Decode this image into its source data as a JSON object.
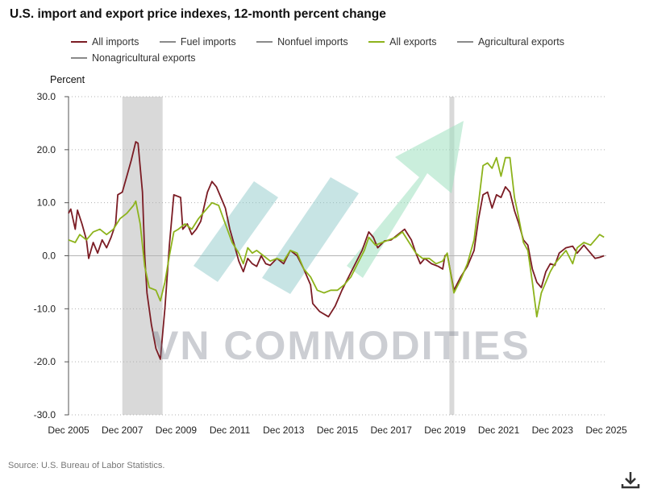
{
  "title": "U.S. import and export price indexes, 12-month percent change",
  "legend": [
    {
      "label": "All imports",
      "color": "#7b1c24"
    },
    {
      "label": "Fuel imports",
      "color": "#8a8a8a"
    },
    {
      "label": "Nonfuel imports",
      "color": "#8a8a8a"
    },
    {
      "label": "All exports",
      "color": "#8db31c"
    },
    {
      "label": "Agricultural exports",
      "color": "#8a8a8a"
    },
    {
      "label": "Nonagricultural exports",
      "color": "#8a8a8a"
    }
  ],
  "source": "Source: U.S. Bureau of Labor Statistics.",
  "watermark": "VN COMMODITIES",
  "chart_data": {
    "type": "line",
    "ylabel": "Percent",
    "xlabel": "",
    "ylim": [
      -30,
      30
    ],
    "yticks": [
      "30.0",
      "20.0",
      "10.0",
      "0.0",
      "-10.0",
      "-20.0",
      "-30.0"
    ],
    "xlim": [
      "2005-12",
      "2025-12"
    ],
    "xticks": [
      "Dec 2005",
      "Dec 2007",
      "Dec 2009",
      "Dec 2011",
      "Dec 2013",
      "Dec 2015",
      "Dec 2017",
      "Dec 2019",
      "Dec 2021",
      "Dec 2023",
      "Dec 2025"
    ],
    "grid": "horizontal dotted",
    "recessions": [
      [
        "2007-12",
        "2009-06"
      ],
      [
        "2020-02",
        "2020-04"
      ]
    ],
    "series": [
      {
        "name": "All imports",
        "color": "#7b1c24",
        "points": [
          [
            "2005-12",
            8.0
          ],
          [
            "2006-01",
            8.8
          ],
          [
            "2006-03",
            5.0
          ],
          [
            "2006-04",
            8.6
          ],
          [
            "2006-06",
            6.0
          ],
          [
            "2006-08",
            3.0
          ],
          [
            "2006-09",
            -0.5
          ],
          [
            "2006-11",
            2.5
          ],
          [
            "2007-01",
            0.5
          ],
          [
            "2007-03",
            3.0
          ],
          [
            "2007-05",
            1.5
          ],
          [
            "2007-07",
            3.5
          ],
          [
            "2007-09",
            6.0
          ],
          [
            "2007-10",
            11.5
          ],
          [
            "2007-12",
            12.0
          ],
          [
            "2008-02",
            15.0
          ],
          [
            "2008-04",
            18.0
          ],
          [
            "2008-06",
            21.5
          ],
          [
            "2008-07",
            21.2
          ],
          [
            "2008-09",
            12.0
          ],
          [
            "2008-10",
            0.0
          ],
          [
            "2008-11",
            -7.0
          ],
          [
            "2009-01",
            -13.0
          ],
          [
            "2009-03",
            -17.5
          ],
          [
            "2009-05",
            -19.5
          ],
          [
            "2009-07",
            -10.0
          ],
          [
            "2009-09",
            2.0
          ],
          [
            "2009-11",
            11.5
          ],
          [
            "2010-02",
            11.0
          ],
          [
            "2010-03",
            5.0
          ],
          [
            "2010-05",
            6.0
          ],
          [
            "2010-07",
            4.0
          ],
          [
            "2010-09",
            5.0
          ],
          [
            "2010-11",
            6.5
          ],
          [
            "2011-02",
            12.0
          ],
          [
            "2011-04",
            14.0
          ],
          [
            "2011-06",
            13.0
          ],
          [
            "2011-08",
            11.0
          ],
          [
            "2011-10",
            9.0
          ],
          [
            "2011-12",
            5.0
          ],
          [
            "2012-02",
            2.0
          ],
          [
            "2012-04",
            -1.0
          ],
          [
            "2012-06",
            -3.0
          ],
          [
            "2012-08",
            -0.5
          ],
          [
            "2012-10",
            -1.5
          ],
          [
            "2012-12",
            -2.0
          ],
          [
            "2013-02",
            0.0
          ],
          [
            "2013-04",
            -1.5
          ],
          [
            "2013-06",
            -1.8
          ],
          [
            "2013-09",
            -0.5
          ],
          [
            "2013-12",
            -1.5
          ],
          [
            "2014-03",
            1.0
          ],
          [
            "2014-06",
            0.0
          ],
          [
            "2014-09",
            -2.5
          ],
          [
            "2014-12",
            -5.5
          ],
          [
            "2015-01",
            -9.0
          ],
          [
            "2015-04",
            -10.5
          ],
          [
            "2015-08",
            -11.5
          ],
          [
            "2015-11",
            -9.5
          ],
          [
            "2016-02",
            -6.5
          ],
          [
            "2016-05",
            -4.0
          ],
          [
            "2016-08",
            -1.5
          ],
          [
            "2016-11",
            1.0
          ],
          [
            "2017-02",
            4.5
          ],
          [
            "2017-04",
            3.5
          ],
          [
            "2017-06",
            1.5
          ],
          [
            "2017-09",
            2.8
          ],
          [
            "2017-12",
            3.0
          ],
          [
            "2018-03",
            4.0
          ],
          [
            "2018-06",
            5.0
          ],
          [
            "2018-09",
            3.0
          ],
          [
            "2018-11",
            0.5
          ],
          [
            "2019-01",
            -1.5
          ],
          [
            "2019-03",
            -0.5
          ],
          [
            "2019-06",
            -1.5
          ],
          [
            "2019-09",
            -2.0
          ],
          [
            "2019-11",
            -2.5
          ],
          [
            "2019-12",
            0.0
          ],
          [
            "2020-01",
            0.3
          ],
          [
            "2020-04",
            -6.5
          ],
          [
            "2020-07",
            -4.0
          ],
          [
            "2020-10",
            -2.0
          ],
          [
            "2021-01",
            1.0
          ],
          [
            "2021-03",
            7.0
          ],
          [
            "2021-05",
            11.5
          ],
          [
            "2021-07",
            12.0
          ],
          [
            "2021-09",
            9.0
          ],
          [
            "2021-11",
            11.5
          ],
          [
            "2022-01",
            11.0
          ],
          [
            "2022-03",
            13.0
          ],
          [
            "2022-05",
            12.0
          ],
          [
            "2022-07",
            8.5
          ],
          [
            "2022-09",
            6.0
          ],
          [
            "2022-11",
            3.0
          ],
          [
            "2023-01",
            2.0
          ],
          [
            "2023-03",
            -2.5
          ],
          [
            "2023-05",
            -5.0
          ],
          [
            "2023-07",
            -6.0
          ],
          [
            "2023-09",
            -3.0
          ],
          [
            "2023-11",
            -1.5
          ],
          [
            "2024-01",
            -1.8
          ],
          [
            "2024-03",
            0.5
          ],
          [
            "2024-06",
            1.5
          ],
          [
            "2024-09",
            1.8
          ],
          [
            "2024-11",
            0.5
          ],
          [
            "2025-02",
            2.0
          ],
          [
            "2025-05",
            0.5
          ],
          [
            "2025-07",
            -0.5
          ],
          [
            "2025-09",
            -0.3
          ],
          [
            "2025-11",
            0.0
          ]
        ]
      },
      {
        "name": "All exports",
        "color": "#8db31c",
        "points": [
          [
            "2005-12",
            3.0
          ],
          [
            "2006-03",
            2.5
          ],
          [
            "2006-05",
            4.0
          ],
          [
            "2006-08",
            3.0
          ],
          [
            "2006-11",
            4.5
          ],
          [
            "2007-02",
            5.0
          ],
          [
            "2007-05",
            4.0
          ],
          [
            "2007-08",
            5.0
          ],
          [
            "2007-11",
            7.0
          ],
          [
            "2008-02",
            8.0
          ],
          [
            "2008-05",
            9.5
          ],
          [
            "2008-06",
            10.3
          ],
          [
            "2008-08",
            6.0
          ],
          [
            "2008-10",
            -2.0
          ],
          [
            "2008-12",
            -6.0
          ],
          [
            "2009-03",
            -6.5
          ],
          [
            "2009-05",
            -8.5
          ],
          [
            "2009-07",
            -5.0
          ],
          [
            "2009-09",
            0.0
          ],
          [
            "2009-11",
            4.5
          ],
          [
            "2010-01",
            5.0
          ],
          [
            "2010-04",
            6.0
          ],
          [
            "2010-07",
            5.0
          ],
          [
            "2010-10",
            7.0
          ],
          [
            "2011-01",
            8.5
          ],
          [
            "2011-04",
            10.0
          ],
          [
            "2011-07",
            9.5
          ],
          [
            "2011-10",
            6.0
          ],
          [
            "2012-01",
            2.5
          ],
          [
            "2012-04",
            0.5
          ],
          [
            "2012-06",
            -1.5
          ],
          [
            "2012-08",
            1.5
          ],
          [
            "2012-10",
            0.5
          ],
          [
            "2012-12",
            1.0
          ],
          [
            "2013-03",
            0.0
          ],
          [
            "2013-06",
            -1.0
          ],
          [
            "2013-09",
            -0.5
          ],
          [
            "2013-12",
            -1.0
          ],
          [
            "2014-03",
            1.0
          ],
          [
            "2014-06",
            0.5
          ],
          [
            "2014-09",
            -2.5
          ],
          [
            "2014-12",
            -4.0
          ],
          [
            "2015-03",
            -6.5
          ],
          [
            "2015-06",
            -7.0
          ],
          [
            "2015-09",
            -6.5
          ],
          [
            "2015-12",
            -6.5
          ],
          [
            "2016-03",
            -5.5
          ],
          [
            "2016-06",
            -4.0
          ],
          [
            "2016-09",
            -1.5
          ],
          [
            "2016-12",
            1.0
          ],
          [
            "2017-02",
            3.5
          ],
          [
            "2017-05",
            2.0
          ],
          [
            "2017-08",
            2.5
          ],
          [
            "2017-11",
            3.0
          ],
          [
            "2018-02",
            3.5
          ],
          [
            "2018-05",
            4.5
          ],
          [
            "2018-08",
            2.5
          ],
          [
            "2018-11",
            0.5
          ],
          [
            "2019-02",
            -0.5
          ],
          [
            "2019-05",
            -0.5
          ],
          [
            "2019-08",
            -1.5
          ],
          [
            "2019-11",
            -1.0
          ],
          [
            "2020-01",
            0.5
          ],
          [
            "2020-04",
            -7.0
          ],
          [
            "2020-07",
            -4.5
          ],
          [
            "2020-10",
            -1.5
          ],
          [
            "2021-01",
            3.0
          ],
          [
            "2021-03",
            10.0
          ],
          [
            "2021-05",
            17.0
          ],
          [
            "2021-07",
            17.5
          ],
          [
            "2021-09",
            16.5
          ],
          [
            "2021-11",
            18.5
          ],
          [
            "2022-01",
            15.0
          ],
          [
            "2022-03",
            18.5
          ],
          [
            "2022-05",
            18.5
          ],
          [
            "2022-07",
            11.0
          ],
          [
            "2022-09",
            7.0
          ],
          [
            "2022-11",
            2.5
          ],
          [
            "2023-01",
            1.0
          ],
          [
            "2023-03",
            -5.0
          ],
          [
            "2023-05",
            -11.5
          ],
          [
            "2023-07",
            -7.0
          ],
          [
            "2023-09",
            -5.0
          ],
          [
            "2023-11",
            -3.0
          ],
          [
            "2024-01",
            -1.5
          ],
          [
            "2024-03",
            -0.5
          ],
          [
            "2024-06",
            1.0
          ],
          [
            "2024-09",
            -1.5
          ],
          [
            "2024-11",
            1.5
          ],
          [
            "2025-02",
            2.5
          ],
          [
            "2025-05",
            2.0
          ],
          [
            "2025-07",
            3.0
          ],
          [
            "2025-09",
            4.0
          ],
          [
            "2025-11",
            3.5
          ]
        ]
      }
    ]
  }
}
